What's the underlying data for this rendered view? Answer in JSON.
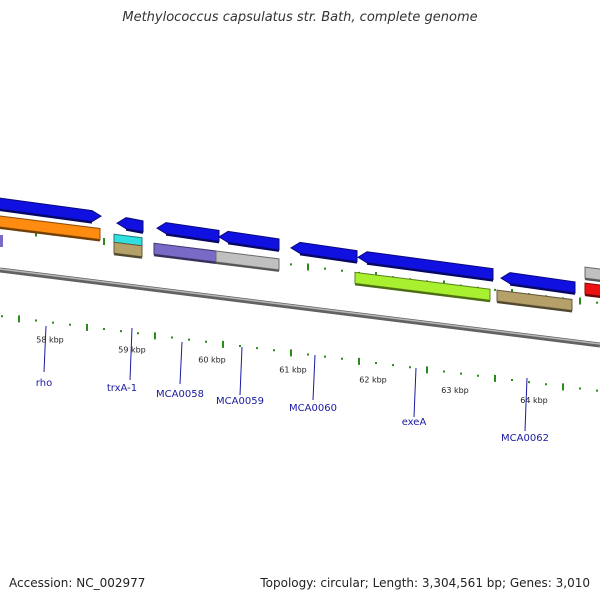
{
  "title": "Methylococcus capsulatus str. Bath, complete genome",
  "footer": {
    "accession": "Accession: NC_002977",
    "summary": "Topology: circular; Length: 3,304,561 bp; Genes: 3,010"
  },
  "colors": {
    "backbone": "#7a7a7a",
    "ticks": "#2a8a1a",
    "labels": "#1a1aa0",
    "forward": "#1010e0",
    "orange": "#ff8c10",
    "cyan": "#30e0e0",
    "khaki": "#b5a06a",
    "purple": "#7a6ac8",
    "silver": "#c0c0c0",
    "lime": "#a8f030",
    "red": "#ee1010"
  },
  "scale_labels": [
    "58 kbp",
    "59 kbp",
    "60 kbp",
    "61 kbp",
    "62 kbp",
    "63 kbp",
    "64 kbp"
  ],
  "genes": [
    {
      "name": "rho"
    },
    {
      "name": "trxA-1"
    },
    {
      "name": "MCA0058"
    },
    {
      "name": "MCA0059"
    },
    {
      "name": "MCA0060"
    },
    {
      "name": "exeA"
    },
    {
      "name": "MCA0062"
    }
  ]
}
